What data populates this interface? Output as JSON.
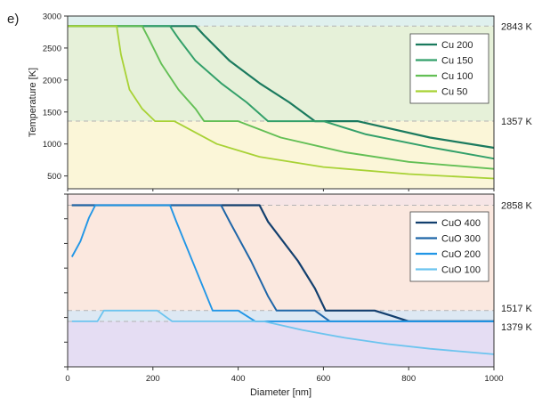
{
  "figure": {
    "panel_letter": "e)"
  },
  "chart_data": [
    {
      "type": "line",
      "panel": "top",
      "xlabel": "",
      "ylabel": "Temperature [K]",
      "xlim": [
        0,
        1000
      ],
      "ylim": [
        300,
        3000
      ],
      "yticks": [
        500,
        1000,
        1500,
        2000,
        2500,
        3000
      ],
      "grid": false,
      "legend_position": "top-right",
      "bands": [
        {
          "from": 2843,
          "to": 3000,
          "color": "#dff0ee"
        },
        {
          "from": 1357,
          "to": 2843,
          "color": "#e6f1d9"
        },
        {
          "from": 300,
          "to": 1357,
          "color": "#fbf6d8"
        }
      ],
      "reference_lines": [
        {
          "value": 2843,
          "label": "2843 K"
        },
        {
          "value": 1357,
          "label": "1357 K"
        }
      ],
      "series": [
        {
          "name": "Cu 200",
          "color": "#1a7a5e",
          "x": [
            0,
            300,
            320,
            380,
            450,
            520,
            580,
            630,
            680,
            750,
            850,
            1000
          ],
          "y": [
            2843,
            2843,
            2700,
            2300,
            1950,
            1650,
            1357,
            1357,
            1357,
            1250,
            1100,
            940
          ]
        },
        {
          "name": "Cu 150",
          "color": "#33a06a",
          "x": [
            0,
            240,
            260,
            300,
            360,
            420,
            470,
            520,
            600,
            700,
            850,
            1000
          ],
          "y": [
            2843,
            2843,
            2650,
            2300,
            1950,
            1650,
            1357,
            1357,
            1357,
            1150,
            950,
            770
          ]
        },
        {
          "name": "Cu 100",
          "color": "#63bf55",
          "x": [
            0,
            175,
            190,
            220,
            260,
            300,
            320,
            400,
            500,
            650,
            800,
            1000
          ],
          "y": [
            2843,
            2843,
            2650,
            2250,
            1850,
            1550,
            1357,
            1357,
            1100,
            870,
            720,
            610
          ]
        },
        {
          "name": "Cu 50",
          "color": "#a8d235",
          "x": [
            0,
            115,
            125,
            145,
            175,
            205,
            250,
            350,
            450,
            600,
            800,
            1000
          ],
          "y": [
            2843,
            2843,
            2400,
            1850,
            1550,
            1357,
            1357,
            1000,
            800,
            640,
            530,
            460
          ]
        }
      ]
    },
    {
      "type": "line",
      "panel": "bottom",
      "xlabel": "Diameter [nm]",
      "ylabel": "",
      "xlim": [
        0,
        1000
      ],
      "ylim": [
        800,
        3000
      ],
      "xticks": [
        0,
        200,
        400,
        600,
        800,
        1000
      ],
      "grid": false,
      "legend_position": "top-right",
      "bands": [
        {
          "from": 2858,
          "to": 3000,
          "color": "#f6e5e6"
        },
        {
          "from": 1517,
          "to": 2858,
          "color": "#fbe8df"
        },
        {
          "from": 1379,
          "to": 1517,
          "color": "#dde8f3"
        },
        {
          "from": 800,
          "to": 1379,
          "color": "#e5ddf3"
        }
      ],
      "reference_lines": [
        {
          "value": 2858,
          "label": "2858 K"
        },
        {
          "value": 1517,
          "label": "1517 K"
        },
        {
          "value": 1379,
          "label": "1379 K"
        }
      ],
      "series": [
        {
          "name": "CuO 400",
          "color": "#123f6e",
          "x": [
            10,
            450,
            470,
            540,
            580,
            605,
            720,
            760,
            800,
            1000
          ],
          "y": [
            2858,
            2858,
            2650,
            2150,
            1800,
            1517,
            1517,
            1450,
            1379,
            1379
          ]
        },
        {
          "name": "CuO 300",
          "color": "#1f66a8",
          "x": [
            10,
            360,
            380,
            430,
            470,
            490,
            580,
            615,
            1000
          ],
          "y": [
            2858,
            2858,
            2650,
            2150,
            1700,
            1517,
            1517,
            1379,
            1379
          ]
        },
        {
          "name": "CuO 200",
          "color": "#2196e6",
          "x": [
            10,
            30,
            50,
            65,
            240,
            255,
            300,
            340,
            400,
            440,
            600,
            800,
            1000
          ],
          "y": [
            2200,
            2400,
            2700,
            2858,
            2858,
            2650,
            2050,
            1517,
            1517,
            1379,
            1379,
            1379,
            1379
          ]
        },
        {
          "name": "CuO 100",
          "color": "#6cc4ef",
          "x": [
            10,
            70,
            85,
            210,
            245,
            460,
            550,
            650,
            750,
            850,
            1000
          ],
          "y": [
            1379,
            1379,
            1517,
            1517,
            1379,
            1379,
            1270,
            1170,
            1090,
            1030,
            960
          ]
        }
      ]
    }
  ]
}
